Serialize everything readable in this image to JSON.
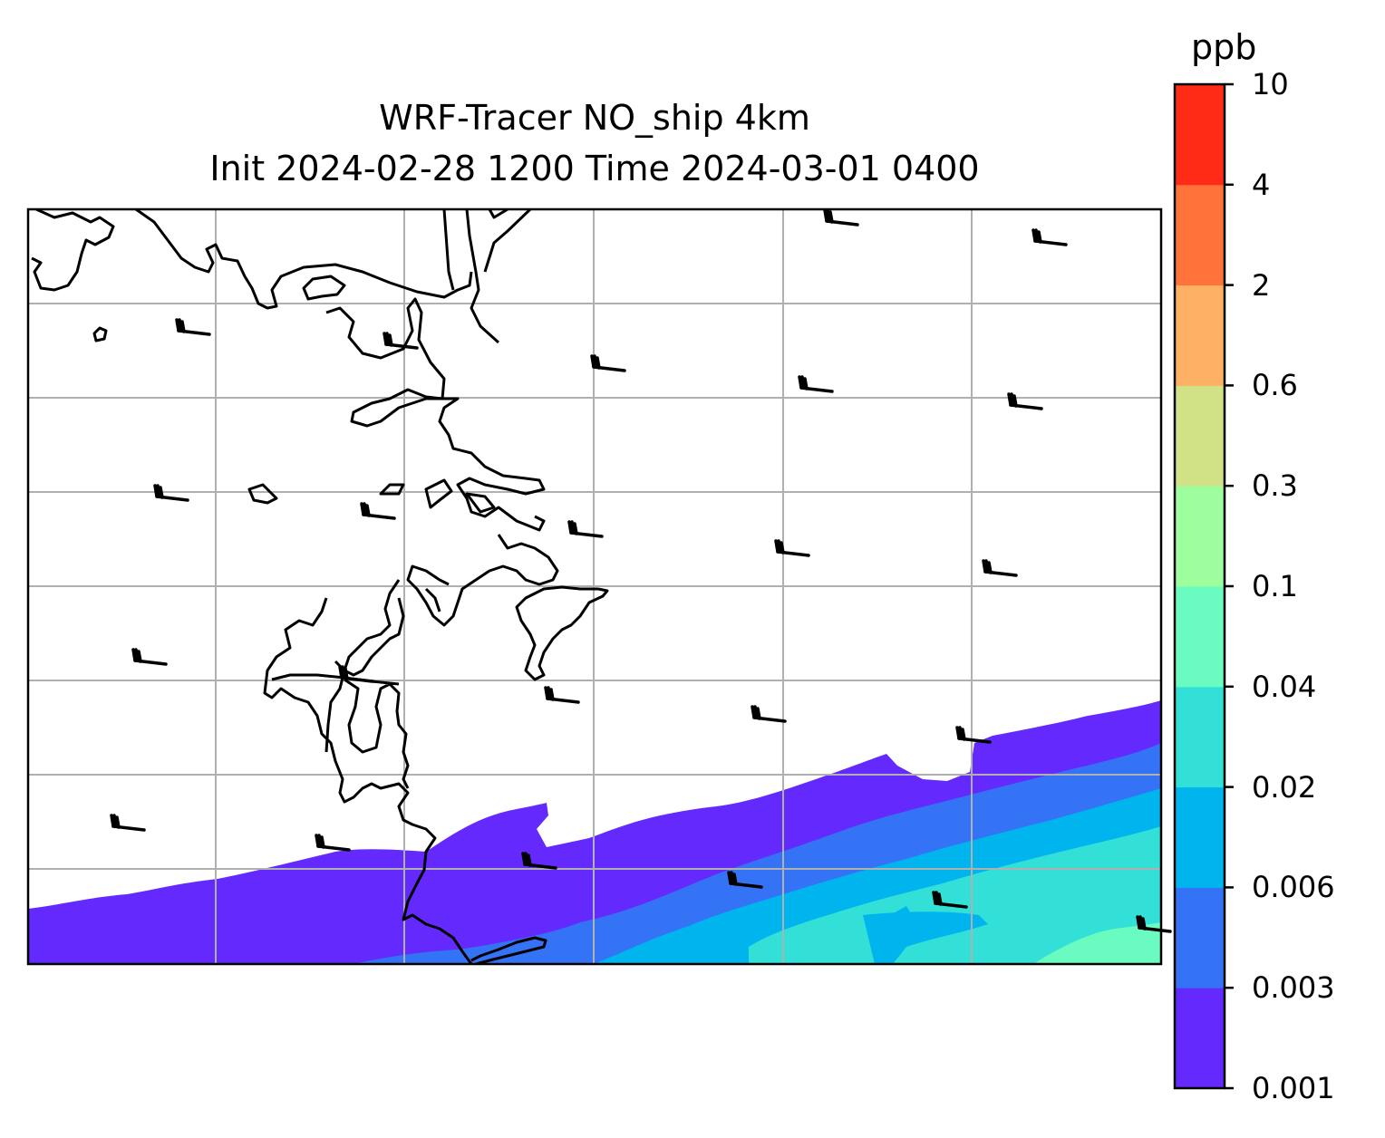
{
  "title": {
    "line1": "WRF-Tracer NO_ship 4km",
    "line2": "Init 2024-02-28 1200 Time 2024-03-01 0400"
  },
  "colorbar": {
    "unit": "ppb",
    "levels": [
      "0.001",
      "0.003",
      "0.006",
      "0.02",
      "0.04",
      "0.1",
      "0.3",
      "0.6",
      "2",
      "4",
      "10"
    ],
    "colors": [
      "#6429fd",
      "#3473f5",
      "#00b5ee",
      "#32e0d8",
      "#69fbbf",
      "#9dfe9e",
      "#d0e285",
      "#feb164",
      "#ff733b",
      "#ff2b17"
    ]
  },
  "map": {
    "coastline_color": "#000000",
    "gridline_color": "#b0b0b0",
    "wind_barb_icon": "wind-barb-icon"
  }
}
